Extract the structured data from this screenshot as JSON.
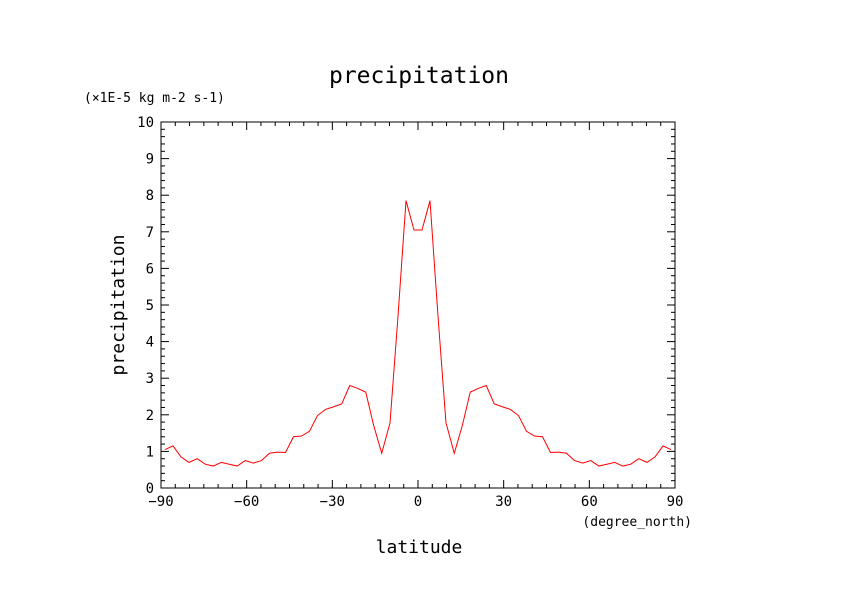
{
  "chart_data": {
    "type": "line",
    "title": "precipitation",
    "xlabel": "latitude",
    "ylabel": "precipitation",
    "y_units": "(×1E-5 kg m-2 s-1)",
    "x_units": "(degree_north)",
    "xlim": [
      -90,
      90
    ],
    "ylim": [
      0,
      10
    ],
    "xticks": [
      -90,
      -60,
      -30,
      0,
      30,
      60,
      90
    ],
    "xtick_labels": [
      "−90",
      "−60",
      "−30",
      "0",
      "30",
      "60",
      "90"
    ],
    "yticks": [
      0,
      1,
      2,
      3,
      4,
      5,
      6,
      7,
      8,
      9,
      10
    ],
    "ytick_labels": [
      "0",
      "1",
      "2",
      "3",
      "4",
      "5",
      "6",
      "7",
      "8",
      "9",
      "10"
    ],
    "grid": false,
    "series": [
      {
        "color": "#ff0000",
        "x": [
          -88.6,
          -85.8,
          -83.0,
          -80.2,
          -77.3,
          -74.5,
          -71.7,
          -68.9,
          -66.1,
          -63.3,
          -60.5,
          -57.7,
          -54.8,
          -52.0,
          -49.2,
          -46.4,
          -43.6,
          -40.8,
          -38.0,
          -35.2,
          -32.3,
          -29.5,
          -26.7,
          -23.9,
          -21.1,
          -18.3,
          -15.5,
          -12.7,
          -9.8,
          -7.0,
          -4.2,
          -1.4,
          1.4,
          4.2,
          7.0,
          9.8,
          12.7,
          15.5,
          18.3,
          21.1,
          23.9,
          26.7,
          29.5,
          32.3,
          35.2,
          38.0,
          40.8,
          43.6,
          46.4,
          49.2,
          52.0,
          54.8,
          57.7,
          60.5,
          63.3,
          66.1,
          68.9,
          71.7,
          74.5,
          77.3,
          80.2,
          83.0,
          85.8,
          88.6
        ],
        "values": [
          1.05,
          1.15,
          0.85,
          0.7,
          0.8,
          0.65,
          0.6,
          0.7,
          0.65,
          0.6,
          0.75,
          0.68,
          0.75,
          0.95,
          0.98,
          0.97,
          1.4,
          1.42,
          1.55,
          1.98,
          2.15,
          2.22,
          2.3,
          2.8,
          2.72,
          2.62,
          1.7,
          0.95,
          1.78,
          4.7,
          7.85,
          7.05,
          7.05,
          7.85,
          4.7,
          1.78,
          0.95,
          1.7,
          2.62,
          2.72,
          2.8,
          2.3,
          2.22,
          2.15,
          1.98,
          1.55,
          1.42,
          1.4,
          0.97,
          0.98,
          0.95,
          0.75,
          0.68,
          0.75,
          0.6,
          0.65,
          0.7,
          0.6,
          0.65,
          0.8,
          0.7,
          0.85,
          1.15,
          1.05
        ]
      }
    ]
  }
}
